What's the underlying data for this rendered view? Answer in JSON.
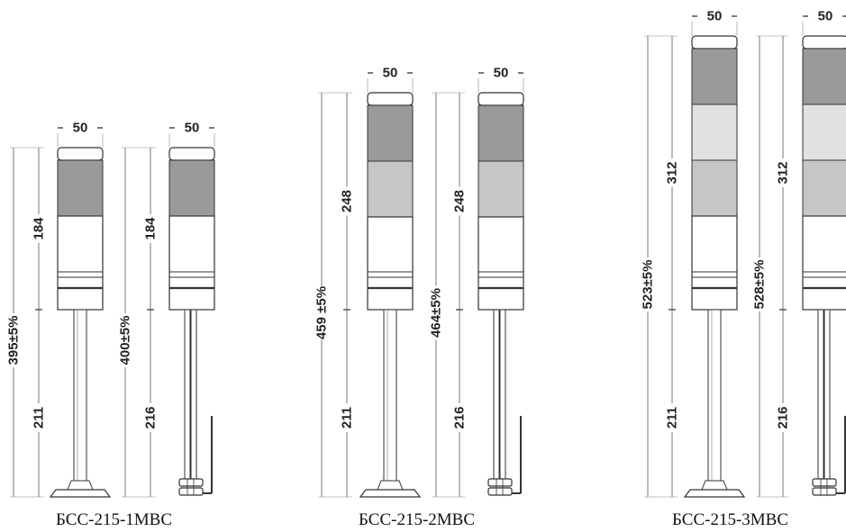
{
  "colors": {
    "segment_dark": "#9a9a9a",
    "segment_mid": "#c6c6c6",
    "segment_light": "#e2e2e2",
    "line": "#333333"
  },
  "groups": [
    {
      "caption": "БСС-215-1МВС",
      "towers": [
        {
          "width_label": "50",
          "total_label": "395±5%",
          "head_label": "184",
          "pole_label": "211",
          "segments": [
            "dark"
          ],
          "base": "flange"
        },
        {
          "width_label": "50",
          "total_label": "400±5%",
          "head_label": "184",
          "pole_label": "216",
          "segments": [
            "dark"
          ],
          "base": "bracket"
        }
      ]
    },
    {
      "caption": "БСС-215-2МВС",
      "towers": [
        {
          "width_label": "50",
          "total_label": "459 ±5%",
          "head_label": "248",
          "pole_label": "211",
          "segments": [
            "dark",
            "mid"
          ],
          "base": "flange"
        },
        {
          "width_label": "50",
          "total_label": "464±5%",
          "head_label": "248",
          "pole_label": "216",
          "segments": [
            "dark",
            "mid"
          ],
          "base": "bracket"
        }
      ]
    },
    {
      "caption": "БСС-215-3МВС",
      "towers": [
        {
          "width_label": "50",
          "total_label": "523±5%",
          "head_label": "312",
          "pole_label": "211",
          "segments": [
            "dark",
            "light",
            "mid"
          ],
          "base": "flange"
        },
        {
          "width_label": "50",
          "total_label": "528±5%",
          "head_label": "312",
          "pole_label": "216",
          "segments": [
            "dark",
            "light",
            "mid"
          ],
          "base": "bracket"
        }
      ]
    }
  ]
}
